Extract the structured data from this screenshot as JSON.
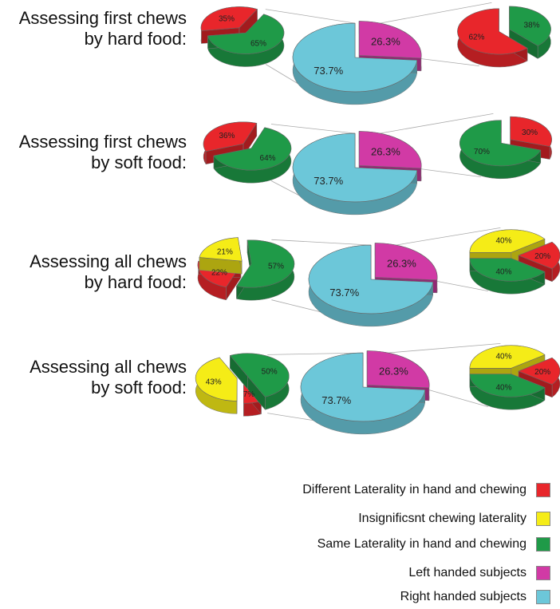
{
  "chart_data": {
    "type": "pie",
    "colors": {
      "different": "#e8262b",
      "insignificant": "#f5ec17",
      "same": "#1f9a48",
      "left": "#d13aa5",
      "right": "#6cc7d9"
    },
    "legend": [
      {
        "key": "different",
        "label": "Different Laterality in hand and chewing"
      },
      {
        "key": "insignificant",
        "label": "Insignificsnt chewing laterality"
      },
      {
        "key": "same",
        "label": "Same Laterality in hand and chewing"
      },
      {
        "key": "left",
        "label": "Left handed subjects"
      },
      {
        "key": "right",
        "label": "Right handed subjects"
      }
    ],
    "panels": [
      {
        "title_lines": [
          "Assessing first chews",
          "by hard food:"
        ],
        "main": {
          "slices": [
            {
              "key": "left",
              "value": 26.3,
              "label": "26.3%"
            },
            {
              "key": "right",
              "value": 73.7,
              "label": "73.7%"
            }
          ]
        },
        "right_handed": {
          "slices": [
            {
              "key": "different",
              "value": 35,
              "label": "35%"
            },
            {
              "key": "same",
              "value": 65,
              "label": "65%"
            }
          ]
        },
        "left_handed": {
          "slices": [
            {
              "key": "same",
              "value": 38,
              "label": "38%"
            },
            {
              "key": "different",
              "value": 62,
              "label": "62%"
            }
          ]
        }
      },
      {
        "title_lines": [
          "Assessing first chews",
          "by soft food:"
        ],
        "main": {
          "slices": [
            {
              "key": "left",
              "value": 26.3,
              "label": "26.3%"
            },
            {
              "key": "right",
              "value": 73.7,
              "label": "73.7%"
            }
          ]
        },
        "right_handed": {
          "slices": [
            {
              "key": "different",
              "value": 36,
              "label": "36%"
            },
            {
              "key": "same",
              "value": 64,
              "label": "64%"
            }
          ]
        },
        "left_handed": {
          "slices": [
            {
              "key": "different",
              "value": 30,
              "label": "30%"
            },
            {
              "key": "same",
              "value": 70,
              "label": "70%"
            }
          ]
        }
      },
      {
        "title_lines": [
          "Assessing all chews",
          "by hard food:"
        ],
        "main": {
          "slices": [
            {
              "key": "left",
              "value": 26.3,
              "label": "26.3%"
            },
            {
              "key": "right",
              "value": 73.7,
              "label": "73.7%"
            }
          ]
        },
        "right_handed": {
          "slices": [
            {
              "key": "different",
              "value": 22,
              "label": "22%"
            },
            {
              "key": "insignificant",
              "value": 21,
              "label": "21%"
            },
            {
              "key": "same",
              "value": 57,
              "label": "57%"
            }
          ]
        },
        "left_handed": {
          "slices": [
            {
              "key": "insignificant",
              "value": 40,
              "label": "40%"
            },
            {
              "key": "different",
              "value": 20,
              "label": "20%"
            },
            {
              "key": "same",
              "value": 40,
              "label": "40%"
            }
          ]
        }
      },
      {
        "title_lines": [
          "Assessing all chews",
          "by soft food:"
        ],
        "main": {
          "slices": [
            {
              "key": "left",
              "value": 26.3,
              "label": "26.3%"
            },
            {
              "key": "right",
              "value": 73.7,
              "label": "73.7%"
            }
          ]
        },
        "right_handed": {
          "slices": [
            {
              "key": "different",
              "value": 7,
              "label": "7%"
            },
            {
              "key": "insignificant",
              "value": 43,
              "label": "43%"
            },
            {
              "key": "same",
              "value": 50,
              "label": "50%"
            }
          ]
        },
        "left_handed": {
          "slices": [
            {
              "key": "insignificant",
              "value": 40,
              "label": "40%"
            },
            {
              "key": "different",
              "value": 20,
              "label": "20%"
            },
            {
              "key": "same",
              "value": 40,
              "label": "40%"
            }
          ]
        }
      }
    ]
  }
}
